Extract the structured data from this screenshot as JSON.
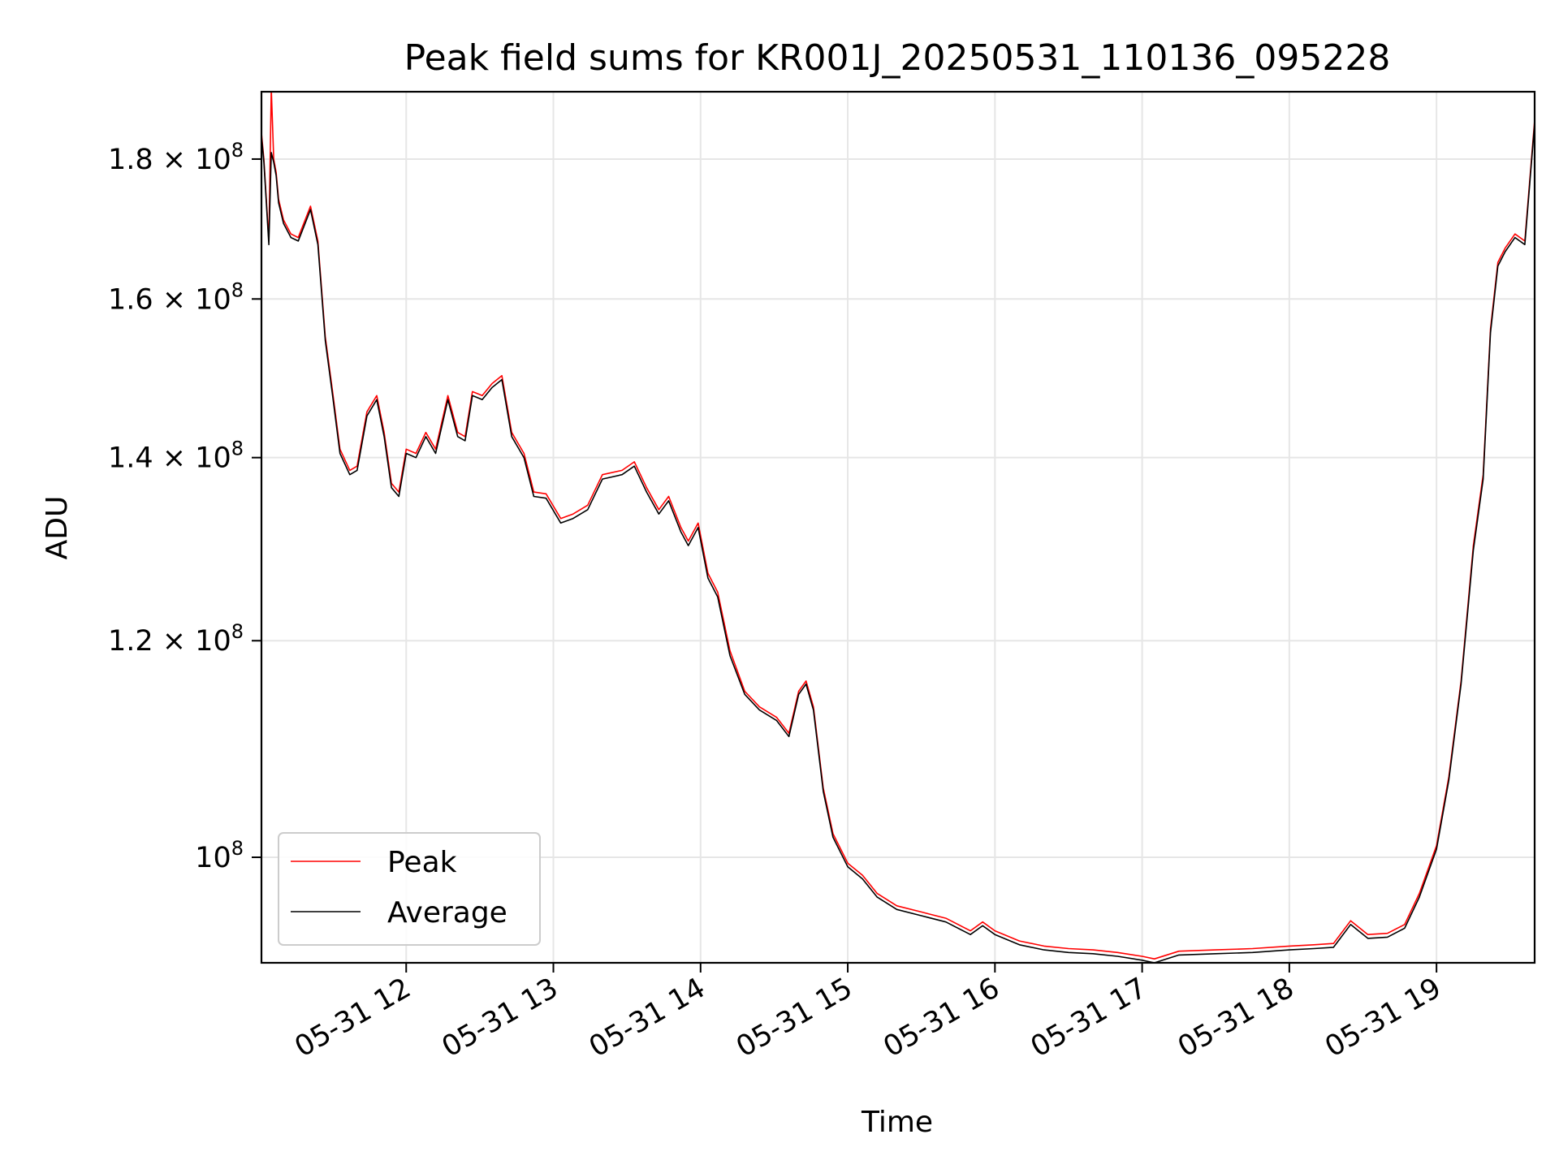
{
  "chart_data": {
    "type": "line",
    "title": "Peak field sums for KR001J_20250531_110136_095228",
    "xlabel": "Time",
    "ylabel": "ADU",
    "yscale": "log",
    "grid": true,
    "legend_position": "lower-left",
    "xlim": [
      "2025-05-31 11:01",
      "2025-05-31 19:40"
    ],
    "ylim": [
      91500000,
      190500000
    ],
    "x_ticks": [
      {
        "value": "2025-05-31 12:00",
        "label": "05-31 12"
      },
      {
        "value": "2025-05-31 13:00",
        "label": "05-31 13"
      },
      {
        "value": "2025-05-31 14:00",
        "label": "05-31 14"
      },
      {
        "value": "2025-05-31 15:00",
        "label": "05-31 15"
      },
      {
        "value": "2025-05-31 16:00",
        "label": "05-31 16"
      },
      {
        "value": "2025-05-31 17:00",
        "label": "05-31 17"
      },
      {
        "value": "2025-05-31 18:00",
        "label": "05-31 18"
      },
      {
        "value": "2025-05-31 19:00",
        "label": "05-31 19"
      }
    ],
    "y_ticks": [
      {
        "value": 100000000,
        "mantissa": "",
        "exp": "8"
      },
      {
        "value": 120000000,
        "mantissa": "1.2",
        "exp": "8"
      },
      {
        "value": 140000000,
        "mantissa": "1.4",
        "exp": "8"
      },
      {
        "value": 160000000,
        "mantissa": "1.6",
        "exp": "8"
      },
      {
        "value": 180000000,
        "mantissa": "1.8",
        "exp": "8"
      }
    ],
    "series": [
      {
        "name": "Peak",
        "color": "#ff0000",
        "x": [
          "2025-05-31 11:01",
          "2025-05-31 11:02",
          "2025-05-31 11:04",
          "2025-05-31 11:05",
          "2025-05-31 11:06",
          "2025-05-31 11:07",
          "2025-05-31 11:08",
          "2025-05-31 11:10",
          "2025-05-31 11:13",
          "2025-05-31 11:16",
          "2025-05-31 11:21",
          "2025-05-31 11:24",
          "2025-05-31 11:27",
          "2025-05-31 11:30",
          "2025-05-31 11:33",
          "2025-05-31 11:37",
          "2025-05-31 11:40",
          "2025-05-31 11:44",
          "2025-05-31 11:48",
          "2025-05-31 11:51",
          "2025-05-31 11:54",
          "2025-05-31 11:57",
          "2025-05-31 12:00",
          "2025-05-31 12:04",
          "2025-05-31 12:08",
          "2025-05-31 12:12",
          "2025-05-31 12:17",
          "2025-05-31 12:21",
          "2025-05-31 12:24",
          "2025-05-31 12:27",
          "2025-05-31 12:31",
          "2025-05-31 12:35",
          "2025-05-31 12:39",
          "2025-05-31 12:43",
          "2025-05-31 12:48",
          "2025-05-31 12:52",
          "2025-05-31 12:57",
          "2025-05-31 13:03",
          "2025-05-31 13:08",
          "2025-05-31 13:14",
          "2025-05-31 13:20",
          "2025-05-31 13:28",
          "2025-05-31 13:33",
          "2025-05-31 13:38",
          "2025-05-31 13:43",
          "2025-05-31 13:47",
          "2025-05-31 13:52",
          "2025-05-31 13:55",
          "2025-05-31 13:59",
          "2025-05-31 14:03",
          "2025-05-31 14:07",
          "2025-05-31 14:12",
          "2025-05-31 14:18",
          "2025-05-31 14:24",
          "2025-05-31 14:31",
          "2025-05-31 14:36",
          "2025-05-31 14:40",
          "2025-05-31 14:43",
          "2025-05-31 14:46",
          "2025-05-31 14:50",
          "2025-05-31 14:54",
          "2025-05-31 15:00",
          "2025-05-31 15:06",
          "2025-05-31 15:12",
          "2025-05-31 15:20",
          "2025-05-31 15:30",
          "2025-05-31 15:40",
          "2025-05-31 15:50",
          "2025-05-31 15:55",
          "2025-05-31 16:00",
          "2025-05-31 16:10",
          "2025-05-31 16:20",
          "2025-05-31 16:30",
          "2025-05-31 16:40",
          "2025-05-31 16:50",
          "2025-05-31 17:00",
          "2025-05-31 17:05",
          "2025-05-31 17:15",
          "2025-05-31 17:30",
          "2025-05-31 17:45",
          "2025-05-31 18:00",
          "2025-05-31 18:10",
          "2025-05-31 18:18",
          "2025-05-31 18:25",
          "2025-05-31 18:32",
          "2025-05-31 18:40",
          "2025-05-31 18:47",
          "2025-05-31 18:53",
          "2025-05-31 19:00",
          "2025-05-31 19:05",
          "2025-05-31 19:10",
          "2025-05-31 19:15",
          "2025-05-31 19:19",
          "2025-05-31 19:22",
          "2025-05-31 19:25",
          "2025-05-31 19:28",
          "2025-05-31 19:32",
          "2025-05-31 19:36",
          "2025-05-31 19:40"
        ],
        "y": [
          184000000,
          180000000,
          168000000,
          191000000,
          180000000,
          178000000,
          174000000,
          171000000,
          169000000,
          168500000,
          173000000,
          168000000,
          155000000,
          148000000,
          141000000,
          138500000,
          139000000,
          145500000,
          147500000,
          143000000,
          137000000,
          136000000,
          141000000,
          140500000,
          143000000,
          141000000,
          147500000,
          143000000,
          142500000,
          148000000,
          147500000,
          149000000,
          150000000,
          143000000,
          140500000,
          136000000,
          135800000,
          133000000,
          133500000,
          134500000,
          138000000,
          138500000,
          139500000,
          136500000,
          134000000,
          135500000,
          132000000,
          130500000,
          132500000,
          127000000,
          125000000,
          119000000,
          115000000,
          113500000,
          112500000,
          111000000,
          115000000,
          116000000,
          113500000,
          106000000,
          102000000,
          99500000,
          98500000,
          97000000,
          96000000,
          95500000,
          95000000,
          94000000,
          94700000,
          94000000,
          93200000,
          92800000,
          92600000,
          92500000,
          92300000,
          92000000,
          91800000,
          92400000,
          92500000,
          92600000,
          92800000,
          92900000,
          93000000,
          94800000,
          93700000,
          93800000,
          94500000,
          97000000,
          101000000,
          107000000,
          116000000,
          130000000,
          138000000,
          156000000,
          165000000,
          167000000,
          169000000,
          168000000,
          186000000
        ]
      },
      {
        "name": "Average",
        "color": "#000000",
        "x": [
          "2025-05-31 11:01",
          "2025-05-31 11:02",
          "2025-05-31 11:04",
          "2025-05-31 11:05",
          "2025-05-31 11:06",
          "2025-05-31 11:07",
          "2025-05-31 11:08",
          "2025-05-31 11:10",
          "2025-05-31 11:13",
          "2025-05-31 11:16",
          "2025-05-31 11:21",
          "2025-05-31 11:24",
          "2025-05-31 11:27",
          "2025-05-31 11:30",
          "2025-05-31 11:33",
          "2025-05-31 11:37",
          "2025-05-31 11:40",
          "2025-05-31 11:44",
          "2025-05-31 11:48",
          "2025-05-31 11:51",
          "2025-05-31 11:54",
          "2025-05-31 11:57",
          "2025-05-31 12:00",
          "2025-05-31 12:04",
          "2025-05-31 12:08",
          "2025-05-31 12:12",
          "2025-05-31 12:17",
          "2025-05-31 12:21",
          "2025-05-31 12:24",
          "2025-05-31 12:27",
          "2025-05-31 12:31",
          "2025-05-31 12:35",
          "2025-05-31 12:39",
          "2025-05-31 12:43",
          "2025-05-31 12:48",
          "2025-05-31 12:52",
          "2025-05-31 12:57",
          "2025-05-31 13:03",
          "2025-05-31 13:08",
          "2025-05-31 13:14",
          "2025-05-31 13:20",
          "2025-05-31 13:28",
          "2025-05-31 13:33",
          "2025-05-31 13:38",
          "2025-05-31 13:43",
          "2025-05-31 13:47",
          "2025-05-31 13:52",
          "2025-05-31 13:55",
          "2025-05-31 13:59",
          "2025-05-31 14:03",
          "2025-05-31 14:07",
          "2025-05-31 14:12",
          "2025-05-31 14:18",
          "2025-05-31 14:24",
          "2025-05-31 14:31",
          "2025-05-31 14:36",
          "2025-05-31 14:40",
          "2025-05-31 14:43",
          "2025-05-31 14:46",
          "2025-05-31 14:50",
          "2025-05-31 14:54",
          "2025-05-31 15:00",
          "2025-05-31 15:06",
          "2025-05-31 15:12",
          "2025-05-31 15:20",
          "2025-05-31 15:30",
          "2025-05-31 15:40",
          "2025-05-31 15:50",
          "2025-05-31 15:55",
          "2025-05-31 16:00",
          "2025-05-31 16:10",
          "2025-05-31 16:20",
          "2025-05-31 16:30",
          "2025-05-31 16:40",
          "2025-05-31 16:50",
          "2025-05-31 17:00",
          "2025-05-31 17:05",
          "2025-05-31 17:15",
          "2025-05-31 17:30",
          "2025-05-31 17:45",
          "2025-05-31 18:00",
          "2025-05-31 18:10",
          "2025-05-31 18:18",
          "2025-05-31 18:25",
          "2025-05-31 18:32",
          "2025-05-31 18:40",
          "2025-05-31 18:47",
          "2025-05-31 18:53",
          "2025-05-31 19:00",
          "2025-05-31 19:05",
          "2025-05-31 19:10",
          "2025-05-31 19:15",
          "2025-05-31 19:19",
          "2025-05-31 19:22",
          "2025-05-31 19:25",
          "2025-05-31 19:28",
          "2025-05-31 19:32",
          "2025-05-31 19:36",
          "2025-05-31 19:40"
        ],
        "y": [
          183500000,
          179500000,
          167500000,
          181000000,
          179500000,
          177500000,
          173500000,
          170500000,
          168500000,
          168000000,
          172500000,
          167500000,
          154500000,
          147500000,
          140500000,
          138000000,
          138500000,
          145000000,
          147000000,
          142500000,
          136500000,
          135500000,
          140500000,
          140000000,
          142500000,
          140500000,
          147000000,
          142500000,
          142000000,
          147500000,
          147000000,
          148500000,
          149500000,
          142500000,
          140000000,
          135500000,
          135300000,
          132500000,
          133000000,
          134000000,
          137500000,
          138000000,
          139000000,
          136000000,
          133500000,
          135000000,
          131500000,
          130000000,
          132000000,
          126500000,
          124500000,
          118500000,
          114700000,
          113200000,
          112200000,
          110700000,
          114700000,
          115700000,
          113200000,
          105700000,
          101700000,
          99200000,
          98200000,
          96700000,
          95700000,
          95200000,
          94700000,
          93700000,
          94400000,
          93700000,
          92900000,
          92500000,
          92300000,
          92200000,
          92000000,
          91700000,
          91500000,
          92100000,
          92200000,
          92300000,
          92500000,
          92600000,
          92700000,
          94500000,
          93400000,
          93500000,
          94200000,
          96700000,
          100700000,
          106700000,
          115700000,
          129500000,
          137500000,
          155500000,
          164500000,
          166500000,
          168500000,
          167500000,
          185500000
        ]
      }
    ]
  }
}
